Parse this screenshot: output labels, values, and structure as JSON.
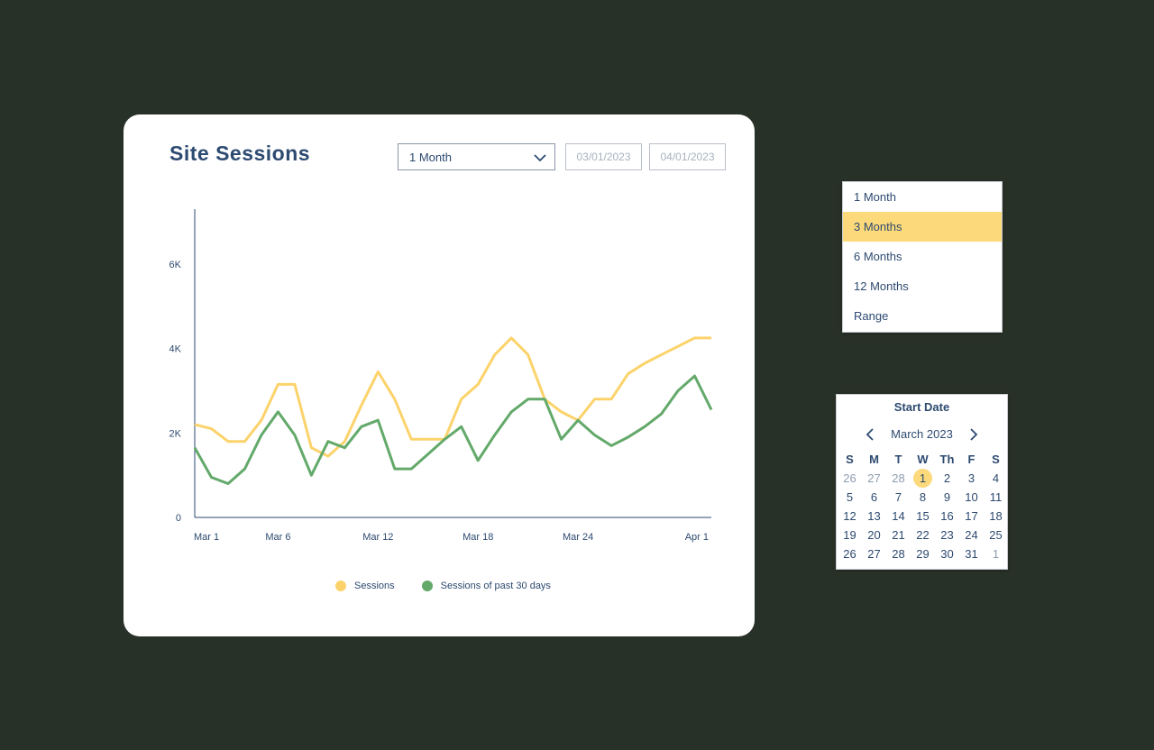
{
  "card": {
    "title": "Site Sessions",
    "period_select": {
      "value": "1 Month",
      "icon": "chevron-down-icon"
    },
    "start_date": {
      "placeholder": "03/01/2023"
    },
    "end_date": {
      "placeholder": "04/01/2023"
    }
  },
  "chart_data": {
    "type": "line",
    "x": [
      "Mar 1",
      "Mar 2",
      "Mar 3",
      "Mar 4",
      "Mar 5",
      "Mar 6",
      "Mar 7",
      "Mar 8",
      "Mar 9",
      "Mar 10",
      "Mar 11",
      "Mar 12",
      "Mar 13",
      "Mar 14",
      "Mar 15",
      "Mar 16",
      "Mar 17",
      "Mar 18",
      "Mar 19",
      "Mar 20",
      "Mar 21",
      "Mar 22",
      "Mar 23",
      "Mar 24",
      "Mar 25",
      "Mar 26",
      "Mar 27",
      "Mar 28",
      "Mar 29",
      "Mar 30",
      "Mar 31",
      "Apr 1"
    ],
    "xticks": [
      "Mar 1",
      "Mar 6",
      "Mar 12",
      "Mar 18",
      "Mar 24",
      "Apr 1"
    ],
    "yticks": [
      "0",
      "2K",
      "4K",
      "6K"
    ],
    "ylim": [
      0,
      7300
    ],
    "series": [
      {
        "name": "Sessions",
        "color": "#fcd36b",
        "values": [
          2200,
          2100,
          1800,
          1800,
          2300,
          3150,
          3150,
          1650,
          1450,
          1800,
          2650,
          3450,
          2800,
          1850,
          1850,
          1850,
          2800,
          3150,
          3850,
          4250,
          3850,
          2800,
          2500,
          2300,
          2800,
          2800,
          3400,
          3650,
          3850,
          4050,
          4250,
          4250
        ]
      },
      {
        "name": "Sessions of past 30 days",
        "color": "#63a96a",
        "values": [
          1650,
          950,
          800,
          1150,
          1950,
          2500,
          1950,
          1000,
          1800,
          1650,
          2150,
          2300,
          1150,
          1150,
          1500,
          1850,
          2150,
          1350,
          1950,
          2500,
          2800,
          2800,
          1850,
          2300,
          1950,
          1700,
          1900,
          2150,
          2450,
          3000,
          3350,
          2550
        ]
      }
    ]
  },
  "legend": {
    "sessions": "Sessions",
    "past30": "Sessions of past 30 days"
  },
  "dropdown": {
    "options": [
      "1 Month",
      "3 Months",
      "6 Months",
      "12 Months",
      "Range"
    ],
    "selected": "3 Months"
  },
  "calendar": {
    "title": "Start Date",
    "month": "March 2023",
    "prev_icon": "chevron-left-icon",
    "next_icon": "chevron-right-icon",
    "weekdays": [
      "S",
      "M",
      "T",
      "W",
      "Th",
      "F",
      "S"
    ],
    "days": [
      "26",
      "27",
      "28",
      "1",
      "2",
      "3",
      "4",
      "5",
      "6",
      "7",
      "8",
      "9",
      "10",
      "11",
      "12",
      "13",
      "14",
      "15",
      "16",
      "17",
      "18",
      "19",
      "20",
      "21",
      "22",
      "23",
      "24",
      "25",
      "26",
      "27",
      "28",
      "29",
      "30",
      "31",
      "1"
    ],
    "muted": [
      0,
      1,
      2,
      34
    ],
    "selected_index": 3
  }
}
